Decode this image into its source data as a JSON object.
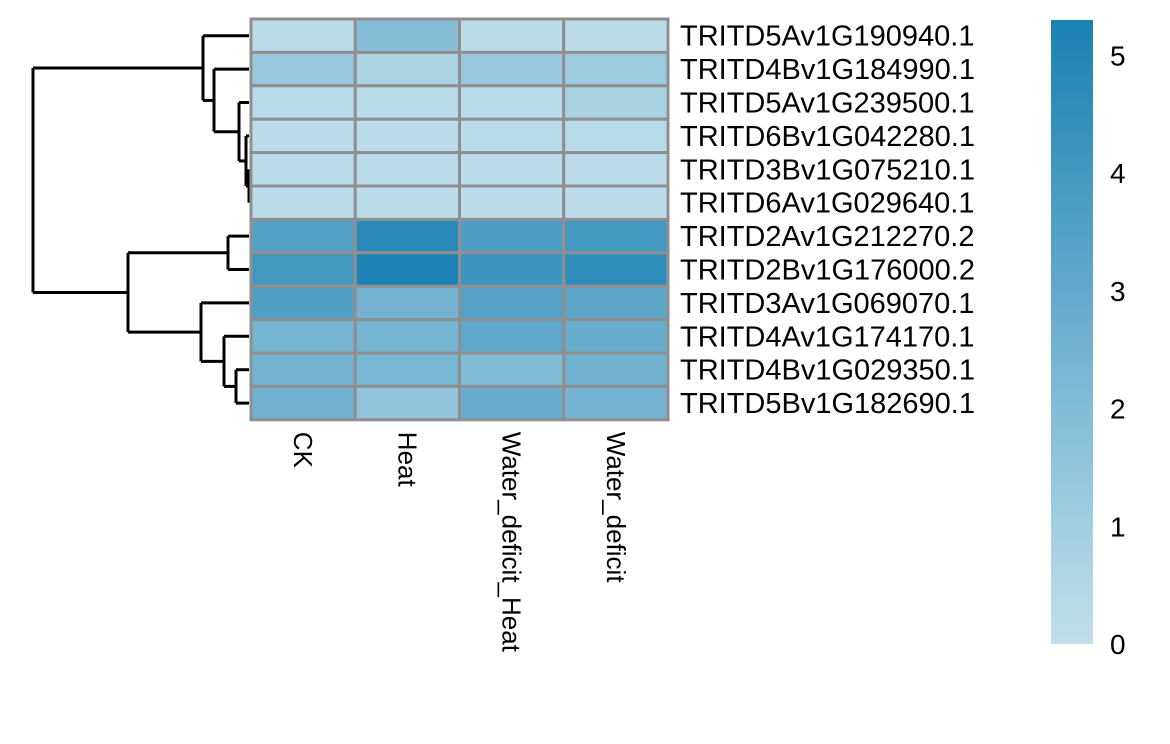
{
  "chart_data": {
    "type": "heatmap",
    "columns": [
      "CK",
      "Heat",
      "Water_deficit_Heat",
      "Water_deficit"
    ],
    "rows": [
      "TRITD5Av1G190940.1",
      "TRITD4Bv1G184990.1",
      "TRITD5Av1G239500.1",
      "TRITD6Bv1G042280.1",
      "TRITD3Bv1G075210.1",
      "TRITD6Av1G029640.1",
      "TRITD2Av1G212270.2",
      "TRITD2Bv1G176000.2",
      "TRITD3Av1G069070.1",
      "TRITD4Av1G174170.1",
      "TRITD4Bv1G029350.1",
      "TRITD5Bv1G182690.1"
    ],
    "values": [
      [
        0.2,
        1.9,
        0.2,
        0.2
      ],
      [
        1.3,
        0.7,
        1.3,
        1.2
      ],
      [
        0.3,
        0.3,
        0.3,
        0.8
      ],
      [
        0.2,
        0.2,
        0.3,
        0.3
      ],
      [
        0.2,
        0.2,
        0.2,
        0.2
      ],
      [
        0.2,
        0.2,
        0.2,
        0.2
      ],
      [
        3.5,
        4.8,
        3.7,
        4.0
      ],
      [
        4.0,
        5.2,
        4.2,
        4.6
      ],
      [
        3.6,
        2.5,
        3.4,
        3.2
      ],
      [
        2.4,
        2.4,
        3.1,
        2.8
      ],
      [
        2.5,
        2.3,
        2.0,
        2.6
      ],
      [
        2.6,
        1.5,
        2.8,
        2.5
      ]
    ],
    "color_scale": {
      "min": 0,
      "max": 5.3,
      "low_color": "#c2e0ec",
      "high_color": "#1a80b3",
      "ticks": [
        0,
        1,
        2,
        3,
        4,
        5
      ]
    },
    "cell_border_color": "#8f8f8f",
    "row_dendrogram": true,
    "legend_placement": "right"
  }
}
